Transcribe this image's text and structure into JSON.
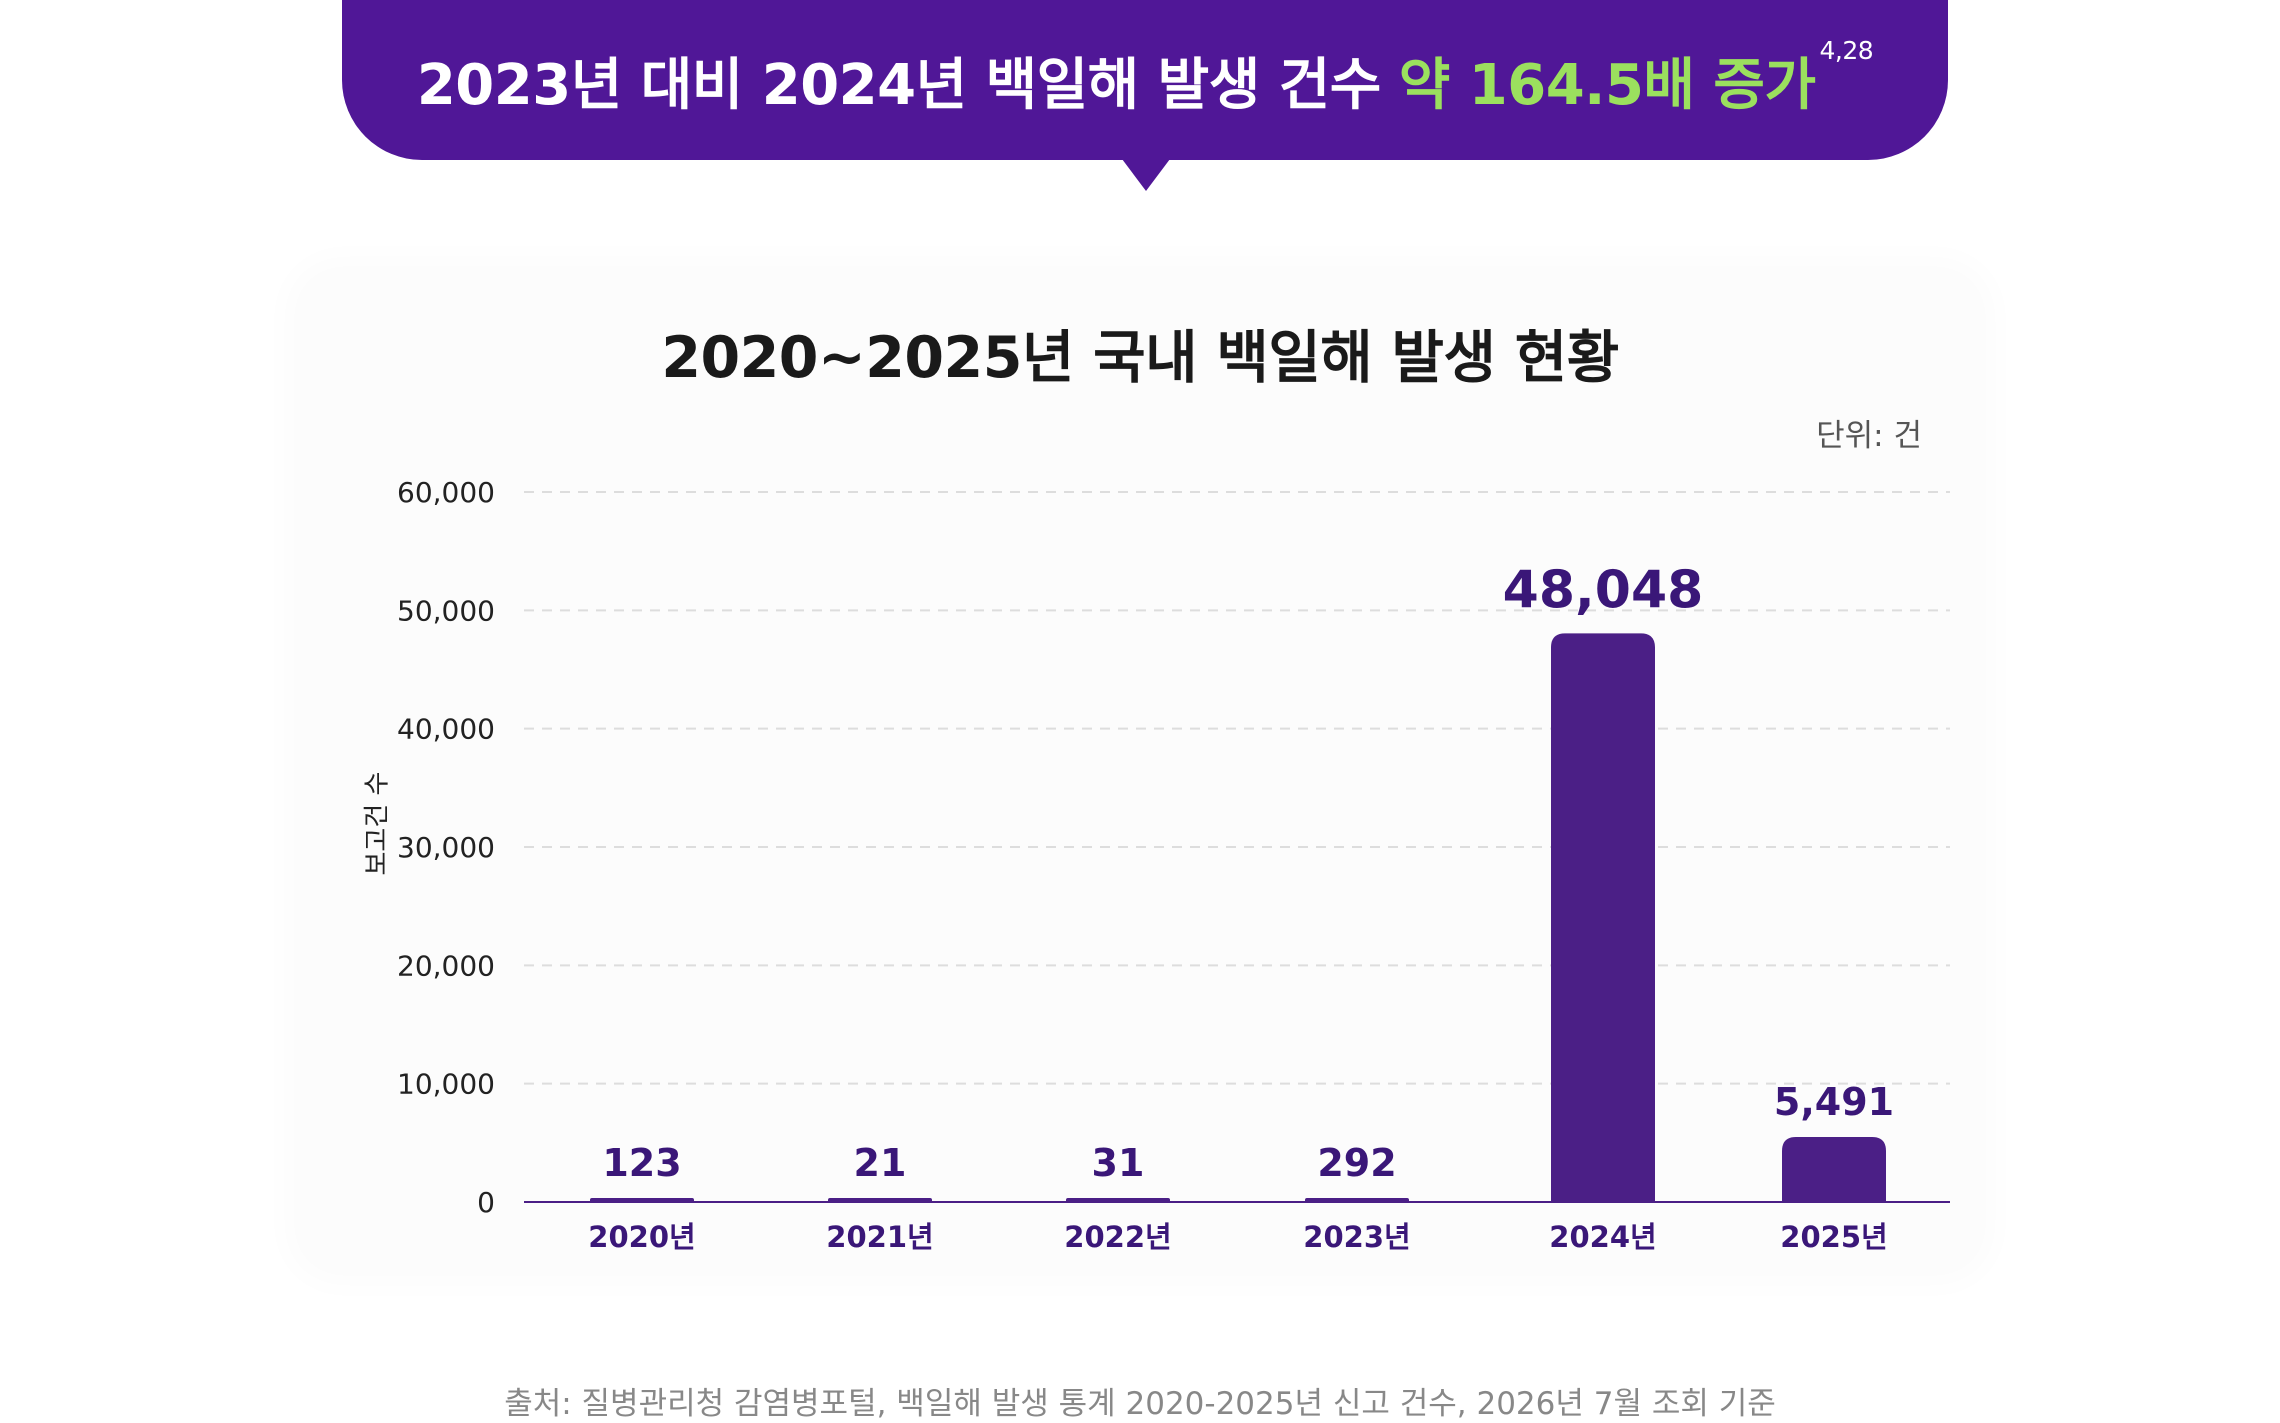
{
  "headline": {
    "lead": "2023년 대비 2024년 백일해 발생 건수",
    "accent": "약 164.5배 증가",
    "superscript": "4,28",
    "background": "#501797",
    "accent_color": "#9BE05E"
  },
  "unit_label": "단위: 건",
  "source": "출처: 질병관리청 감염병포털, 백일해 발생 통계 2020-2025년 신고 건수, 2026년 7월 조회 기준",
  "chart_data": {
    "type": "bar",
    "title": "2020~2025년 국내 백일해 발생 현황",
    "xlabel": "",
    "ylabel": "보고건 수",
    "categories": [
      "2020년",
      "2021년",
      "2022년",
      "2023년",
      "2024년",
      "2025년"
    ],
    "values": [
      123,
      21,
      31,
      292,
      48048,
      5491
    ],
    "value_labels": [
      "123",
      "21",
      "31",
      "292",
      "48,048",
      "5,491"
    ],
    "ylim": [
      0,
      60000
    ],
    "yticks": [
      0,
      10000,
      20000,
      30000,
      40000,
      50000,
      60000
    ],
    "ytick_labels": [
      "0",
      "10,000",
      "20,000",
      "30,000",
      "40,000",
      "50,000",
      "60,000"
    ],
    "grid": true,
    "bar_color": "#4B1F86",
    "label_color": "#3A1778"
  }
}
